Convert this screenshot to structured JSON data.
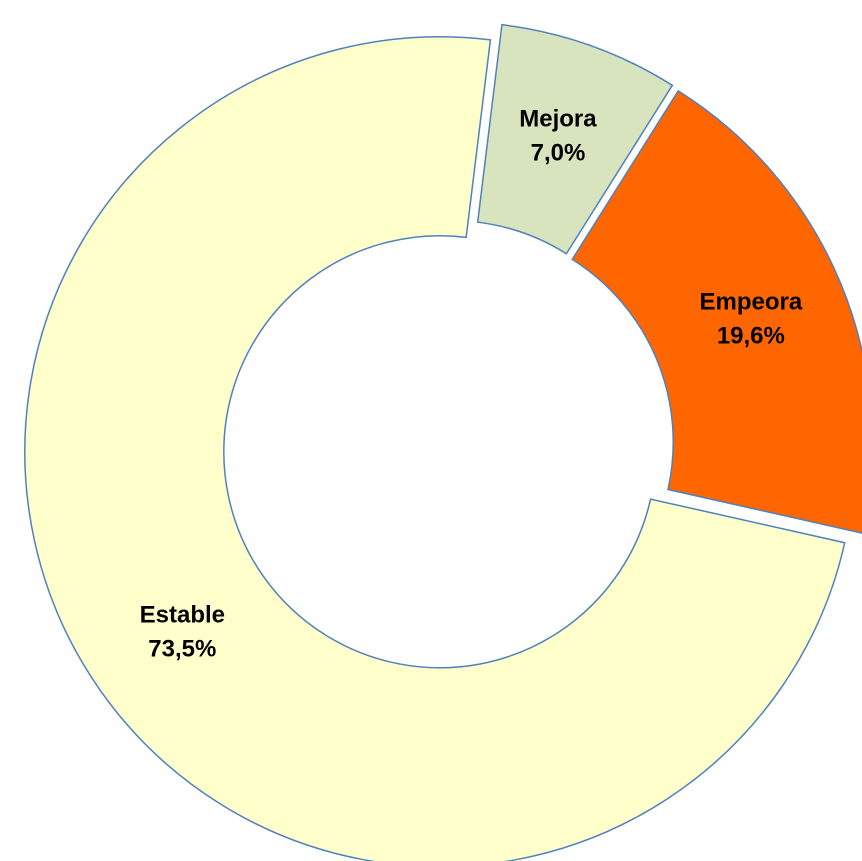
{
  "chart_data": {
    "type": "donut",
    "categories": [
      "Mejora",
      "Empeora",
      "Estable"
    ],
    "values": [
      7.0,
      19.6,
      73.5
    ],
    "value_labels": [
      "7,0%",
      "19,6%",
      "73,5%"
    ],
    "colors": [
      "#d7e4bd",
      "#ff6600",
      "#ffffcc"
    ],
    "edge_color": "#4f81bd"
  }
}
